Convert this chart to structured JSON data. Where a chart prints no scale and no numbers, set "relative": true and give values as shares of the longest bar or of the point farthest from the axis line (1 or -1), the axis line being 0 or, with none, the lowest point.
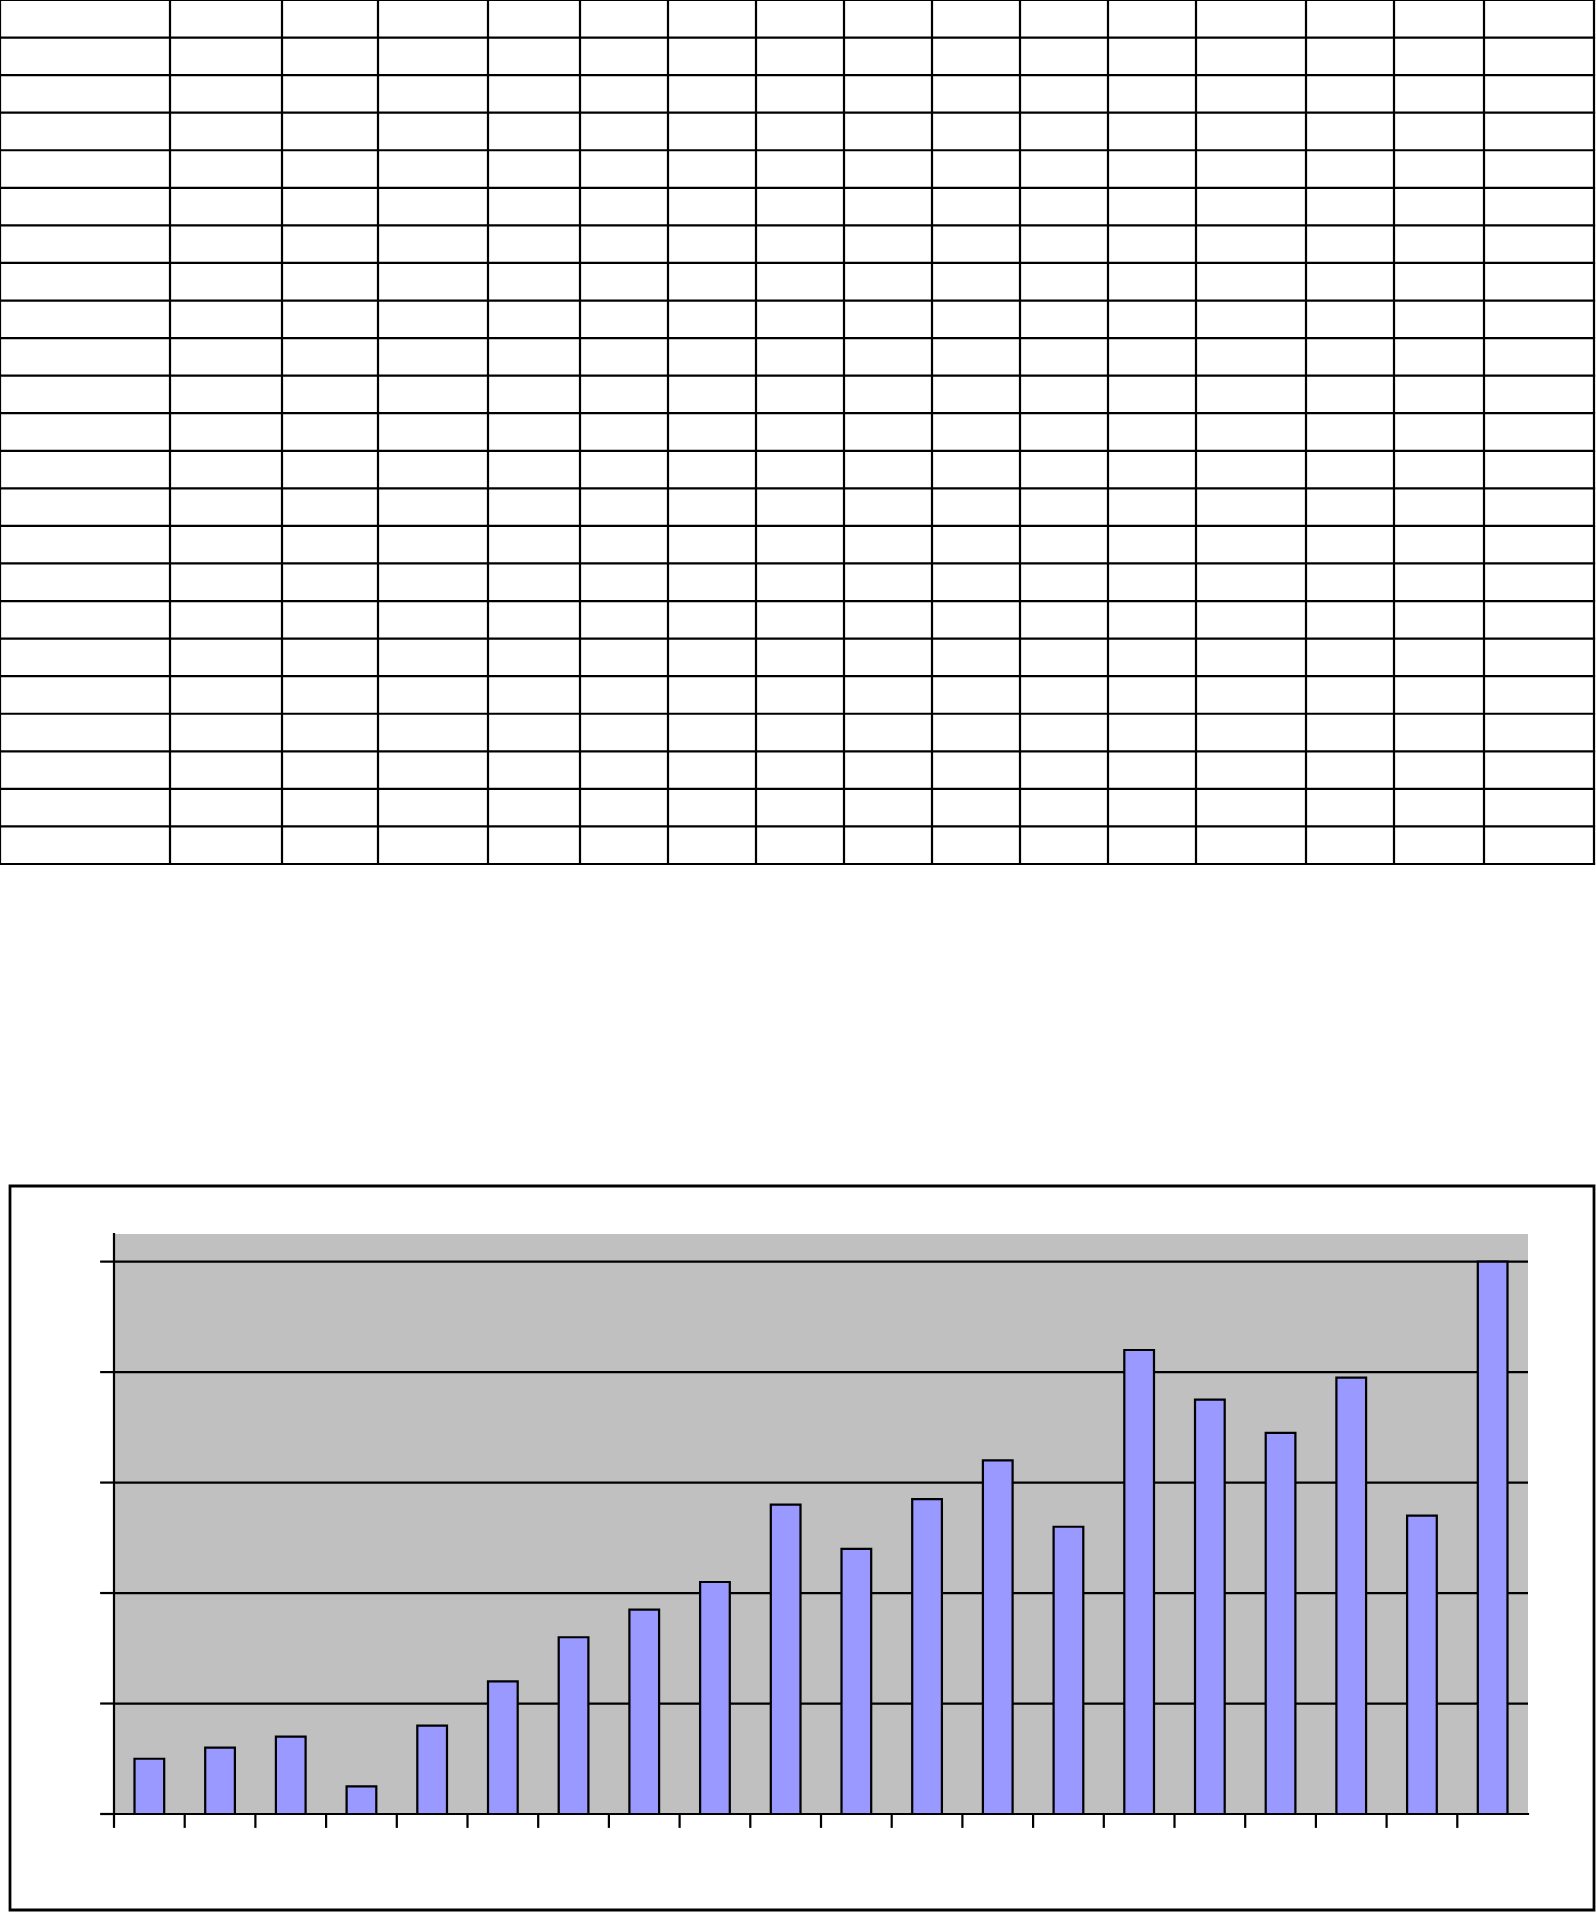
{
  "chart_data": {
    "type": "bar",
    "relative": true,
    "categories": [
      null,
      null,
      null,
      null,
      null,
      null,
      null,
      null,
      null,
      null,
      null,
      null,
      null,
      null,
      null,
      null,
      null,
      null,
      null,
      null
    ],
    "values": [
      0.1,
      0.12,
      0.14,
      0.05,
      0.16,
      0.24,
      0.32,
      0.37,
      0.42,
      0.56,
      0.48,
      0.57,
      0.64,
      0.52,
      0.84,
      0.75,
      0.69,
      0.79,
      0.54,
      1.0
    ],
    "color": "#9999ff",
    "grid": "y",
    "tick_labels": false
  }
}
